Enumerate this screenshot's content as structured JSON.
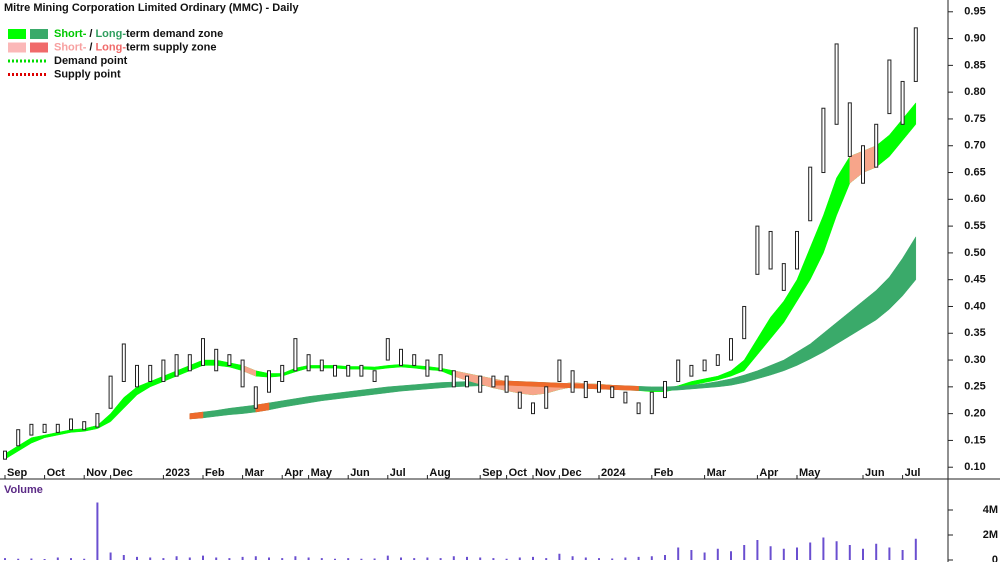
{
  "chart_data": {
    "type": "hilo",
    "title": "Mitre Mining Corporation Limited Ordinary (MMC) - Daily",
    "legend": [
      {
        "parts": [
          {
            "text": "Short-",
            "color": "#00c800"
          },
          {
            "text": "/",
            "color": "#111111"
          },
          {
            "text": "Long-",
            "color": "#2f9e5e"
          },
          {
            "text": "term demand zone",
            "color": "#111111"
          }
        ],
        "swatches": [
          "#00ff00",
          "#3aaa6a"
        ]
      },
      {
        "parts": [
          {
            "text": "Short-",
            "color": "#f7a0a0"
          },
          {
            "text": "/",
            "color": "#111111"
          },
          {
            "text": "Long-",
            "color": "#f06a6a"
          },
          {
            "text": "term supply zone",
            "color": "#111111"
          }
        ],
        "swatches": [
          "#fbb8b8",
          "#f06a6a"
        ]
      },
      {
        "parts": [
          {
            "text": "Demand point",
            "color": "#111111"
          }
        ],
        "dotted": "#00dd00"
      },
      {
        "parts": [
          {
            "text": "Supply point",
            "color": "#111111"
          }
        ],
        "dotted": "#dd0000"
      }
    ],
    "categories": [
      "Sep",
      null,
      null,
      "Oct",
      null,
      null,
      "Nov",
      null,
      "Dec",
      null,
      null,
      null,
      "2023",
      null,
      null,
      "Feb",
      null,
      null,
      "Mar",
      null,
      null,
      "Apr",
      null,
      "May",
      null,
      null,
      "Jun",
      null,
      null,
      "Jul",
      null,
      null,
      "Aug",
      null,
      null,
      null,
      "Sep",
      null,
      "Oct",
      null,
      "Nov",
      null,
      "Dec",
      null,
      null,
      "2024",
      null,
      null,
      null,
      "Feb",
      null,
      null,
      null,
      "Mar",
      null,
      null,
      null,
      "Apr",
      null,
      null,
      "May",
      null,
      null,
      null,
      null,
      "Jun",
      null,
      null,
      "Jul",
      null
    ],
    "low": [
      0.115,
      0.14,
      0.16,
      0.165,
      0.165,
      0.17,
      0.17,
      0.175,
      0.21,
      0.26,
      0.25,
      0.26,
      0.26,
      0.27,
      0.28,
      0.29,
      0.28,
      0.29,
      0.25,
      0.21,
      0.24,
      0.26,
      0.28,
      0.28,
      0.28,
      0.27,
      0.27,
      0.27,
      0.26,
      0.3,
      0.29,
      0.29,
      0.27,
      0.28,
      0.25,
      0.25,
      0.24,
      0.25,
      0.24,
      0.21,
      0.2,
      0.21,
      0.26,
      0.24,
      0.23,
      0.24,
      0.23,
      0.22,
      0.2,
      0.2,
      0.23,
      0.26,
      0.27,
      0.28,
      0.29,
      0.3,
      0.34,
      0.46,
      0.47,
      0.43,
      0.47,
      0.56,
      0.65,
      0.74,
      0.68,
      0.63,
      0.66,
      0.76,
      0.74,
      0.82
    ],
    "high": [
      0.13,
      0.17,
      0.18,
      0.18,
      0.18,
      0.19,
      0.185,
      0.2,
      0.27,
      0.33,
      0.29,
      0.29,
      0.3,
      0.31,
      0.31,
      0.34,
      0.32,
      0.31,
      0.3,
      0.25,
      0.28,
      0.29,
      0.34,
      0.31,
      0.3,
      0.29,
      0.29,
      0.29,
      0.28,
      0.34,
      0.32,
      0.31,
      0.3,
      0.31,
      0.28,
      0.27,
      0.27,
      0.27,
      0.27,
      0.24,
      0.22,
      0.25,
      0.3,
      0.28,
      0.26,
      0.26,
      0.25,
      0.24,
      0.22,
      0.24,
      0.26,
      0.3,
      0.29,
      0.3,
      0.31,
      0.34,
      0.4,
      0.55,
      0.54,
      0.48,
      0.54,
      0.66,
      0.77,
      0.89,
      0.78,
      0.7,
      0.74,
      0.86,
      0.82,
      0.92
    ],
    "bar_color": "#222222",
    "zones": [
      {
        "color": "#00ff00",
        "upper": [
          0.125,
          0.14,
          0.155,
          0.16,
          0.165,
          0.17,
          0.172,
          0.178,
          0.2,
          0.23,
          0.25,
          0.26,
          0.27,
          0.28,
          0.29,
          0.3,
          0.3,
          0.295,
          0.29,
          0.28,
          0.275,
          0.275,
          0.285,
          0.29,
          0.29,
          0.29,
          0.288,
          0.288,
          0.287,
          0.29,
          0.292,
          0.29,
          0.288,
          0.285,
          0.28,
          0.275,
          0.27,
          0.265,
          0.26,
          0.255,
          0.25,
          0.25,
          0.255,
          0.258,
          0.256,
          0.255,
          0.253,
          0.25,
          0.248,
          0.246,
          0.246,
          0.252,
          0.26,
          0.265,
          0.27,
          0.28,
          0.3,
          0.34,
          0.38,
          0.41,
          0.45,
          0.51,
          0.57,
          0.64,
          0.68,
          0.69,
          0.7,
          0.72,
          0.75,
          0.78
        ],
        "lower": [
          0.115,
          0.13,
          0.145,
          0.155,
          0.16,
          0.165,
          0.167,
          0.172,
          0.185,
          0.21,
          0.235,
          0.25,
          0.26,
          0.27,
          0.28,
          0.29,
          0.29,
          0.287,
          0.28,
          0.27,
          0.268,
          0.27,
          0.278,
          0.285,
          0.285,
          0.285,
          0.283,
          0.283,
          0.282,
          0.285,
          0.287,
          0.285,
          0.282,
          0.28,
          0.27,
          0.262,
          0.255,
          0.248,
          0.243,
          0.238,
          0.235,
          0.238,
          0.245,
          0.25,
          0.25,
          0.25,
          0.247,
          0.245,
          0.243,
          0.241,
          0.241,
          0.246,
          0.253,
          0.258,
          0.263,
          0.27,
          0.28,
          0.31,
          0.34,
          0.37,
          0.41,
          0.45,
          0.5,
          0.57,
          0.63,
          0.65,
          0.66,
          0.68,
          0.71,
          0.74
        ]
      },
      {
        "color": "#3aaa6a",
        "upper": [
          null,
          null,
          null,
          null,
          null,
          null,
          null,
          null,
          null,
          null,
          null,
          null,
          null,
          null,
          0.2,
          0.203,
          0.206,
          0.21,
          0.213,
          0.216,
          0.22,
          0.224,
          0.228,
          0.232,
          0.235,
          0.238,
          0.241,
          0.244,
          0.247,
          0.25,
          0.252,
          0.254,
          0.256,
          0.258,
          0.259,
          0.26,
          0.261,
          0.261,
          0.261,
          0.26,
          0.259,
          0.258,
          0.257,
          0.256,
          0.255,
          0.254,
          0.253,
          0.252,
          0.251,
          0.25,
          0.25,
          0.251,
          0.253,
          0.256,
          0.26,
          0.265,
          0.272,
          0.28,
          0.29,
          0.3,
          0.315,
          0.33,
          0.35,
          0.37,
          0.39,
          0.41,
          0.43,
          0.455,
          0.49,
          0.53
        ],
        "lower": [
          null,
          null,
          null,
          null,
          null,
          null,
          null,
          null,
          null,
          null,
          null,
          null,
          null,
          null,
          0.19,
          0.192,
          0.195,
          0.198,
          0.2,
          0.203,
          0.207,
          0.212,
          0.216,
          0.22,
          0.224,
          0.227,
          0.23,
          0.233,
          0.236,
          0.239,
          0.242,
          0.244,
          0.246,
          0.248,
          0.25,
          0.251,
          0.252,
          0.253,
          0.253,
          0.252,
          0.251,
          0.25,
          0.249,
          0.248,
          0.247,
          0.246,
          0.245,
          0.244,
          0.243,
          0.243,
          0.243,
          0.244,
          0.246,
          0.248,
          0.25,
          0.253,
          0.258,
          0.265,
          0.272,
          0.28,
          0.29,
          0.302,
          0.315,
          0.33,
          0.345,
          0.36,
          0.375,
          0.395,
          0.42,
          0.45
        ]
      },
      {
        "color": "#f7a58a",
        "upper": [
          null,
          null,
          null,
          null,
          null,
          null,
          null,
          null,
          null,
          null,
          null,
          null,
          null,
          null,
          null,
          null,
          null,
          null,
          0.29,
          0.28,
          null,
          null,
          null,
          null,
          null,
          null,
          null,
          null,
          null,
          null,
          null,
          null,
          null,
          null,
          0.28,
          0.275,
          0.27,
          0.265,
          0.26,
          0.255,
          0.25,
          0.25,
          0.255,
          0.258,
          0.256,
          0.255,
          0.253,
          0.25,
          null,
          null,
          null,
          null,
          null,
          null,
          null,
          null,
          null,
          null,
          null,
          null,
          null,
          null,
          null,
          null,
          0.68,
          0.69,
          0.7,
          null,
          null,
          null
        ],
        "lower": [
          null,
          null,
          null,
          null,
          null,
          null,
          null,
          null,
          null,
          null,
          null,
          null,
          null,
          null,
          null,
          null,
          null,
          null,
          0.28,
          0.27,
          null,
          null,
          null,
          null,
          null,
          null,
          null,
          null,
          null,
          null,
          null,
          null,
          null,
          null,
          0.27,
          0.262,
          0.255,
          0.248,
          0.243,
          0.238,
          0.235,
          0.238,
          0.245,
          0.25,
          0.25,
          0.25,
          0.247,
          0.245,
          null,
          null,
          null,
          null,
          null,
          null,
          null,
          null,
          null,
          null,
          null,
          null,
          null,
          null,
          null,
          null,
          0.63,
          0.65,
          0.66,
          null,
          null,
          null
        ]
      },
      {
        "color": "#ee6a2c",
        "upper": [
          null,
          null,
          null,
          null,
          null,
          null,
          null,
          null,
          null,
          null,
          null,
          null,
          null,
          null,
          0.2,
          0.203,
          null,
          null,
          null,
          0.216,
          0.22,
          null,
          null,
          null,
          null,
          null,
          null,
          null,
          null,
          null,
          null,
          null,
          null,
          null,
          null,
          null,
          null,
          0.261,
          0.261,
          0.26,
          0.259,
          0.258,
          0.257,
          0.256,
          0.255,
          0.254,
          0.253,
          0.252,
          0.251,
          null,
          null,
          null,
          null,
          null,
          null,
          null,
          null,
          null,
          null,
          null,
          null,
          null,
          null,
          null,
          null,
          null,
          null,
          null,
          null,
          null
        ],
        "lower": [
          null,
          null,
          null,
          null,
          null,
          null,
          null,
          null,
          null,
          null,
          null,
          null,
          null,
          null,
          0.19,
          0.192,
          null,
          null,
          null,
          0.203,
          0.207,
          null,
          null,
          null,
          null,
          null,
          null,
          null,
          null,
          null,
          null,
          null,
          null,
          null,
          null,
          null,
          null,
          0.253,
          0.253,
          0.252,
          0.251,
          0.25,
          0.249,
          0.248,
          0.247,
          0.246,
          0.245,
          0.244,
          0.243,
          null,
          null,
          null,
          null,
          null,
          null,
          null,
          null,
          null,
          null,
          null,
          null,
          null,
          null,
          null,
          null,
          null,
          null,
          null,
          null,
          null
        ]
      }
    ],
    "ylim": [
      0.078,
      0.972
    ],
    "yticks": [
      {
        "value": 0.1,
        "label": "0.10"
      },
      0.15,
      {
        "value": 0.2,
        "label": "0.20"
      },
      0.25,
      {
        "value": 0.3,
        "label": "0.30"
      },
      0.35,
      {
        "value": 0.4,
        "label": "0.40"
      },
      0.45,
      {
        "value": 0.5,
        "label": "0.50"
      },
      0.55,
      {
        "value": 0.6,
        "label": "0.60"
      },
      0.65,
      {
        "value": 0.7,
        "label": "0.70"
      },
      0.75,
      {
        "value": 0.8,
        "label": "0.80"
      },
      0.85,
      {
        "value": 0.9,
        "label": "0.90"
      },
      0.95
    ],
    "volume": {
      "label": "Volume",
      "color": "#6a4fd0",
      "values": [
        150000,
        100000,
        120000,
        80000,
        200000,
        150000,
        100000,
        4600000,
        600000,
        400000,
        250000,
        200000,
        150000,
        300000,
        200000,
        350000,
        200000,
        150000,
        250000,
        300000,
        200000,
        150000,
        300000,
        200000,
        150000,
        100000,
        150000,
        100000,
        120000,
        350000,
        200000,
        150000,
        200000,
        150000,
        300000,
        250000,
        200000,
        150000,
        100000,
        200000,
        250000,
        150000,
        500000,
        300000,
        200000,
        150000,
        120000,
        200000,
        250000,
        300000,
        400000,
        1000000,
        800000,
        600000,
        900000,
        700000,
        1200000,
        1600000,
        1100000,
        900000,
        1000000,
        1400000,
        1800000,
        1500000,
        1200000,
        900000,
        1300000,
        1000000,
        800000,
        1700000
      ],
      "ylim": [
        0,
        6000000
      ],
      "yticks": [
        0,
        {
          "value": 2000000,
          "label": "2M"
        },
        {
          "value": 4000000,
          "label": "4M"
        }
      ]
    }
  }
}
